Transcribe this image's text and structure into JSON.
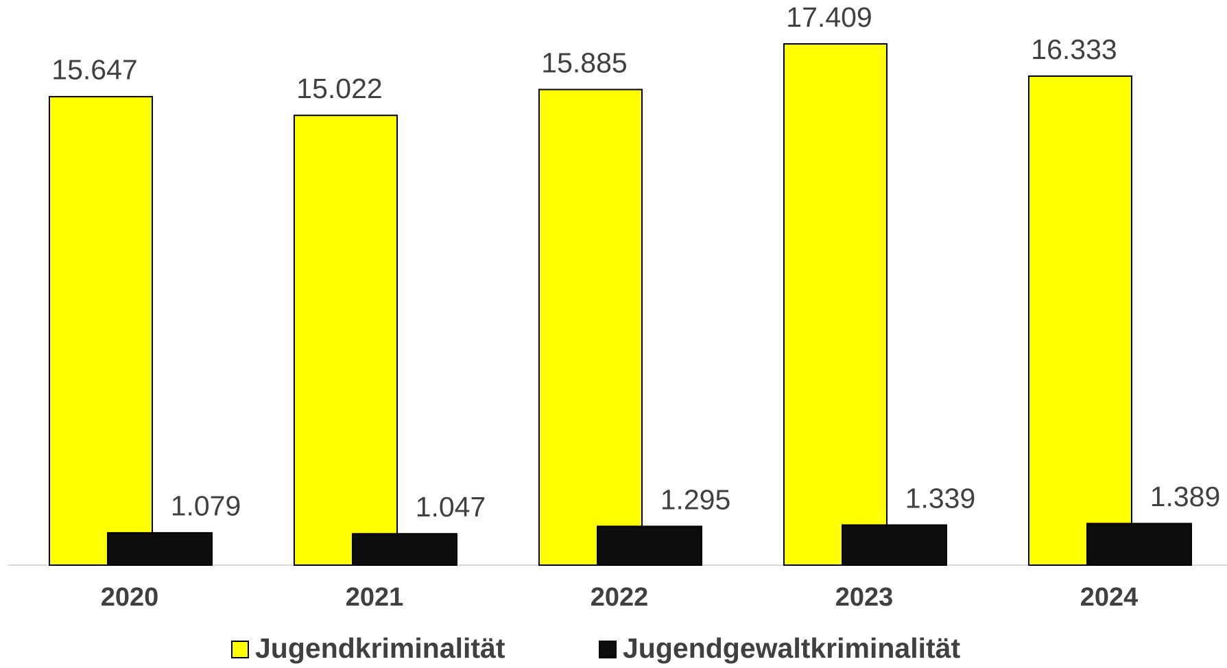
{
  "chart_data": {
    "type": "bar",
    "categories": [
      "2020",
      "2021",
      "2022",
      "2023",
      "2024"
    ],
    "series": [
      {
        "name": "Jugendkriminalität",
        "color": "#ffff00",
        "values": [
          15647,
          15022,
          15885,
          17409,
          16333
        ],
        "value_labels": [
          "15.647",
          "15.022",
          "15.885",
          "17.409",
          "16.333"
        ]
      },
      {
        "name": "Jugendgewaltkriminalität",
        "color": "#0d0d0d",
        "values": [
          1079,
          1047,
          1295,
          1339,
          1389
        ],
        "value_labels": [
          "1.079",
          "1.047",
          "1.295",
          "1.339",
          "1.389"
        ]
      }
    ]
  }
}
